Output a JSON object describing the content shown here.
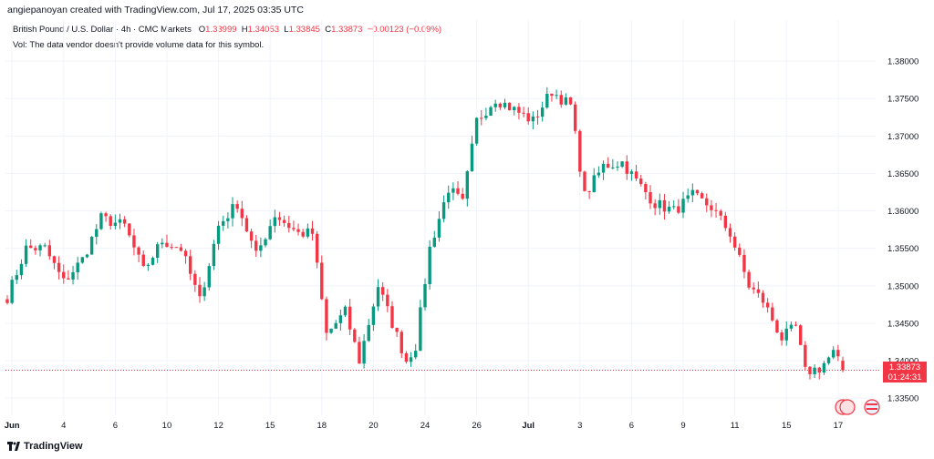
{
  "header": {
    "attribution": "angiepanoyan created with TradingView.com, Jul 17, 2025 03:35 UTC"
  },
  "info": {
    "symbol": "British Pound / U.S. Dollar · 4h · CMC Markets",
    "open_label": "O",
    "open": "1.33999",
    "high_label": "H",
    "high": "1.34053",
    "low_label": "L",
    "low": "1.33845",
    "close_label": "C",
    "close": "1.33873",
    "change": "−0.00123 (−0.09%)",
    "volume_note": "Vol: The data vendor doesn't provide volume data for this symbol."
  },
  "price_tag": {
    "price": "1.33873",
    "countdown": "01:24:31"
  },
  "footer": {
    "brand": "TradingView"
  },
  "colors": {
    "up": "#089981",
    "down": "#f23645",
    "grid": "#f0f3fa",
    "text": "#131722"
  },
  "chart_data": {
    "type": "candlestick",
    "title": "British Pound / U.S. Dollar · 4h · CMC Markets",
    "y_axis": {
      "range": [
        1.331,
        1.385
      ],
      "ticks": [
        "1.38000",
        "1.37500",
        "1.37000",
        "1.36500",
        "1.36000",
        "1.35500",
        "1.35000",
        "1.34500",
        "1.34000",
        "1.33500"
      ],
      "tick_values": [
        1.38,
        1.375,
        1.37,
        1.365,
        1.36,
        1.355,
        1.35,
        1.345,
        1.34,
        1.335
      ]
    },
    "x_axis": {
      "labels": [
        "Jun",
        "4",
        "6",
        "10",
        "12",
        "15",
        "18",
        "20",
        "24",
        "26",
        "Jul",
        "3",
        "6",
        "9",
        "11",
        "15",
        "17"
      ],
      "bold": [
        "Jun",
        "Jul"
      ],
      "label_bar_index": [
        1,
        12,
        23,
        34,
        45,
        56,
        67,
        78,
        89,
        100,
        111,
        122,
        133,
        144,
        155,
        166,
        177
      ]
    },
    "waypoints": [
      [
        0,
        1.3485
      ],
      [
        4,
        1.355
      ],
      [
        8,
        1.355
      ],
      [
        12,
        1.3505
      ],
      [
        16,
        1.3535
      ],
      [
        20,
        1.359
      ],
      [
        25,
        1.358
      ],
      [
        29,
        1.352
      ],
      [
        33,
        1.356
      ],
      [
        37,
        1.355
      ],
      [
        41,
        1.348
      ],
      [
        45,
        1.358
      ],
      [
        49,
        1.361
      ],
      [
        53,
        1.354
      ],
      [
        57,
        1.3595
      ],
      [
        62,
        1.357
      ],
      [
        65,
        1.357
      ],
      [
        68,
        1.3435
      ],
      [
        72,
        1.3465
      ],
      [
        75,
        1.34
      ],
      [
        79,
        1.35
      ],
      [
        82,
        1.345
      ],
      [
        85,
        1.34
      ],
      [
        87,
        1.342
      ],
      [
        90,
        1.355
      ],
      [
        94,
        1.363
      ],
      [
        97,
        1.361
      ],
      [
        100,
        1.372
      ],
      [
        104,
        1.375
      ],
      [
        108,
        1.3735
      ],
      [
        112,
        1.372
      ],
      [
        116,
        1.376
      ],
      [
        120,
        1.374
      ],
      [
        123,
        1.362
      ],
      [
        127,
        1.366
      ],
      [
        131,
        1.3665
      ],
      [
        134,
        1.364
      ],
      [
        138,
        1.361
      ],
      [
        142,
        1.36
      ],
      [
        146,
        1.362
      ],
      [
        150,
        1.3605
      ],
      [
        154,
        1.357
      ],
      [
        158,
        1.35
      ],
      [
        161,
        1.348
      ],
      [
        165,
        1.343
      ],
      [
        168,
        1.3445
      ],
      [
        170,
        1.3385
      ],
      [
        173,
        1.339
      ],
      [
        176,
        1.341
      ],
      [
        178,
        1.33873
      ]
    ],
    "last_close": 1.33873
  }
}
